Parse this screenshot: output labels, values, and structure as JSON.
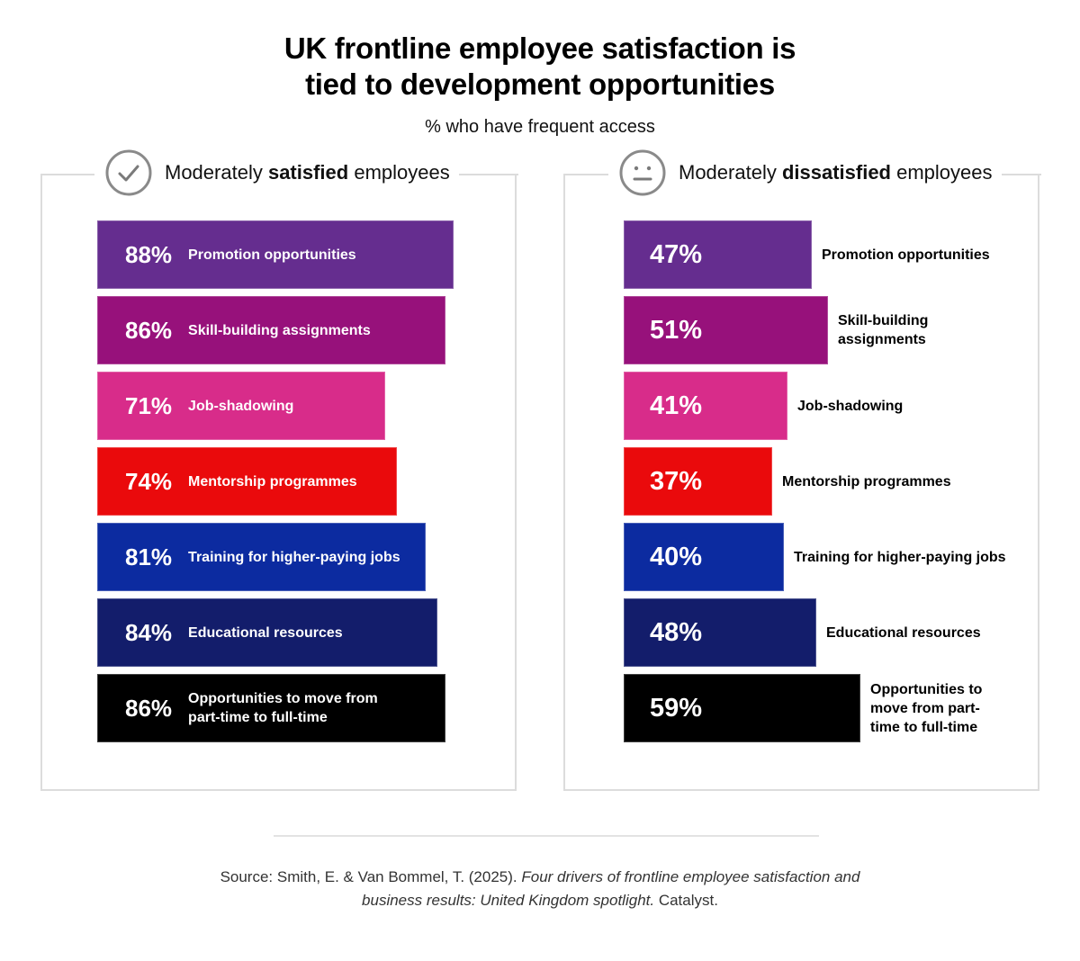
{
  "header": {
    "title_line1": "UK frontline employee satisfaction is",
    "title_line2": "tied to development opportunities",
    "subtitle": "% who have frequent access"
  },
  "panels": [
    {
      "id": "satisfied",
      "icon": "check-circle-icon",
      "heading_pre": "Moderately ",
      "heading_bold": "satisfied",
      "heading_post": " employees",
      "label_position": "inside",
      "bars": [
        {
          "pct": "88%",
          "label": "Promotion opportunities",
          "value": 88,
          "color": "#652d8f"
        },
        {
          "pct": "86%",
          "label": "Skill-building assignments",
          "value": 86,
          "color": "#97117b"
        },
        {
          "pct": "71%",
          "label": "Job-shadowing",
          "value": 71,
          "color": "#d82c8a"
        },
        {
          "pct": "74%",
          "label": "Mentorship programmes",
          "value": 74,
          "color": "#ea0a0c"
        },
        {
          "pct": "81%",
          "label": "Training for higher-paying jobs",
          "value": 81,
          "color": "#0c2ba0"
        },
        {
          "pct": "84%",
          "label": "Educational resources",
          "value": 84,
          "color": "#131d6b"
        },
        {
          "pct": "86%",
          "label": "Opportunities to move from part-time to full-time",
          "value": 86,
          "color": "#000000"
        }
      ]
    },
    {
      "id": "dissatisfied",
      "icon": "neutral-face-icon",
      "heading_pre": "Moderately ",
      "heading_bold": "dissatisfied",
      "heading_post": " employees",
      "label_position": "outside",
      "bars": [
        {
          "pct": "47%",
          "label": "Promotion opportunities",
          "value": 47,
          "color": "#652d8f"
        },
        {
          "pct": "51%",
          "label": "Skill-building assignments",
          "value": 51,
          "color": "#97117b"
        },
        {
          "pct": "41%",
          "label": "Job-shadowing",
          "value": 41,
          "color": "#d82c8a"
        },
        {
          "pct": "37%",
          "label": "Mentorship programmes",
          "value": 37,
          "color": "#ea0a0c"
        },
        {
          "pct": "40%",
          "label": "Training for higher-paying jobs",
          "value": 40,
          "color": "#0c2ba0"
        },
        {
          "pct": "48%",
          "label": "Educational resources",
          "value": 48,
          "color": "#131d6b"
        },
        {
          "pct": "59%",
          "label": "Opportunities to move from part-time to full-time",
          "value": 59,
          "color": "#000000"
        }
      ]
    }
  ],
  "footer": {
    "source_prefix": "Source: Smith, E. & Van Bommel, T. (2025). ",
    "source_italic": "Four drivers of frontline employee satisfaction and business results: United Kingdom spotlight.",
    "source_suffix": " Catalyst."
  },
  "chart_data": [
    {
      "type": "bar",
      "orientation": "horizontal",
      "title": "UK frontline employee satisfaction is tied to development opportunities",
      "subtitle": "% who have frequent access",
      "panel_title": "Moderately satisfied employees",
      "categories": [
        "Promotion opportunities",
        "Skill-building assignments",
        "Job-shadowing",
        "Mentorship programmes",
        "Training for higher-paying jobs",
        "Educational resources",
        "Opportunities to move from part-time to full-time"
      ],
      "values": [
        88,
        86,
        71,
        74,
        81,
        84,
        86
      ],
      "unit": "%",
      "colors": [
        "#652d8f",
        "#97117b",
        "#d82c8a",
        "#ea0a0c",
        "#0c2ba0",
        "#131d6b",
        "#000000"
      ],
      "xlabel": "",
      "ylabel": "",
      "xlim": [
        0,
        100
      ],
      "grid": false,
      "legend": "none"
    },
    {
      "type": "bar",
      "orientation": "horizontal",
      "title": "UK frontline employee satisfaction is tied to development opportunities",
      "subtitle": "% who have frequent access",
      "panel_title": "Moderately dissatisfied employees",
      "categories": [
        "Promotion opportunities",
        "Skill-building assignments",
        "Job-shadowing",
        "Mentorship programmes",
        "Training for higher-paying jobs",
        "Educational resources",
        "Opportunities to move from part-time to full-time"
      ],
      "values": [
        47,
        51,
        41,
        37,
        40,
        48,
        59
      ],
      "unit": "%",
      "colors": [
        "#652d8f",
        "#97117b",
        "#d82c8a",
        "#ea0a0c",
        "#0c2ba0",
        "#131d6b",
        "#000000"
      ],
      "xlabel": "",
      "ylabel": "",
      "xlim": [
        0,
        100
      ],
      "grid": false,
      "legend": "none"
    }
  ]
}
